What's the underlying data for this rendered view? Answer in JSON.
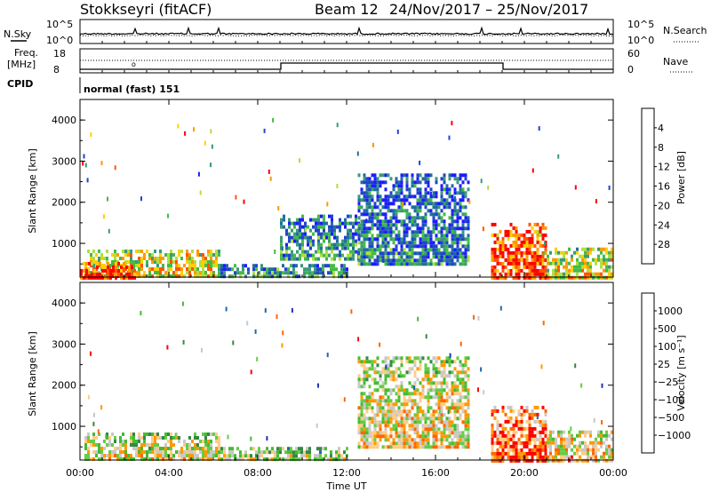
{
  "header": {
    "station": "Stokkseyri (fitACF)",
    "beam": "Beam 12",
    "dates": "24/Nov/2017 – 25/Nov/2017"
  },
  "noise_panel": {
    "left_label": "N.Sky",
    "right_label": "N.Search",
    "ticks_left": [
      "10^5",
      "10^0"
    ],
    "ticks_right": [
      "10^5",
      "10^0"
    ]
  },
  "freq_panel": {
    "left_label_1": "Freq.",
    "left_label_2": "[MHz]",
    "right_label": "Nave",
    "ticks_left": [
      "18",
      "8"
    ],
    "ticks_right": [
      "60",
      "0"
    ]
  },
  "cpid": {
    "label": "CPID",
    "mode": "normal (fast) 151"
  },
  "x_axis": {
    "label": "Time UT",
    "ticks": [
      "00:00",
      "04:00",
      "08:00",
      "12:00",
      "16:00",
      "20:00",
      "00:00"
    ]
  },
  "chart_data": [
    {
      "type": "heatmap",
      "name": "power",
      "xlabel": "Time UT",
      "ylabel": "Slant Range [km]",
      "x_unit": "hours UT",
      "xlim": [
        0,
        24
      ],
      "ylim": [
        180,
        4500
      ],
      "yticks": [
        "1000",
        "2000",
        "3000",
        "4000"
      ],
      "colorbar": {
        "label": "Power [dB]",
        "ticks": [
          "4",
          "8",
          "12",
          "16",
          "20",
          "24",
          "28"
        ],
        "range": [
          0,
          31
        ],
        "colors": [
          "#1c1cff",
          "#2244cc",
          "#206ea0",
          "#3a9a78",
          "#44bb44",
          "#aee040",
          "#ffd000",
          "#ff9900",
          "#ff5500",
          "#ff0000"
        ]
      },
      "regions": [
        {
          "t0": 0.2,
          "t1": 6.2,
          "r0": 200,
          "r1": 850,
          "level": 0.55
        },
        {
          "t0": 0.0,
          "t1": 2.5,
          "r0": 200,
          "r1": 550,
          "level": 0.8
        },
        {
          "t0": 6.2,
          "t1": 12.0,
          "r0": 200,
          "r1": 500,
          "level": 0.25
        },
        {
          "t0": 9.0,
          "t1": 12.5,
          "r0": 600,
          "r1": 1700,
          "level": 0.2
        },
        {
          "t0": 12.5,
          "t1": 17.5,
          "r0": 500,
          "r1": 2700,
          "level": 0.15
        },
        {
          "t0": 18.5,
          "t1": 21.0,
          "r0": 200,
          "r1": 1500,
          "level": 0.8
        },
        {
          "t0": 21.0,
          "t1": 24.0,
          "r0": 200,
          "r1": 900,
          "level": 0.5
        }
      ]
    },
    {
      "type": "heatmap",
      "name": "velocity",
      "xlabel": "Time UT",
      "ylabel": "Slant Range [km]",
      "x_unit": "hours UT",
      "xlim": [
        0,
        24
      ],
      "ylim": [
        180,
        4500
      ],
      "yticks": [
        "1000",
        "2000",
        "3000",
        "4000"
      ],
      "colorbar": {
        "label": "Velocity [m s⁻¹]",
        "ticks": [
          "1000",
          "500",
          "100",
          "25",
          "−25",
          "−100",
          "−500",
          "−1000"
        ],
        "colors": [
          "#2233bb",
          "#2266aa",
          "#338844",
          "#44bb33",
          "#66cc44",
          "#c8c8c8",
          "#ffcc88",
          "#ff9900",
          "#ff6600",
          "#ff0000"
        ]
      },
      "regions": [
        {
          "t0": 0.2,
          "t1": 6.2,
          "r0": 200,
          "r1": 850,
          "level": 0.45
        },
        {
          "t0": 6.2,
          "t1": 12.0,
          "r0": 200,
          "r1": 500,
          "level": 0.4
        },
        {
          "t0": 12.5,
          "t1": 17.5,
          "r0": 500,
          "r1": 2700,
          "level": 0.5
        },
        {
          "t0": 18.5,
          "t1": 21.0,
          "r0": 200,
          "r1": 1500,
          "level": 0.75
        },
        {
          "t0": 21.0,
          "t1": 24.0,
          "r0": 200,
          "r1": 900,
          "level": 0.55
        }
      ]
    }
  ],
  "colors": {
    "axis": "#000000"
  }
}
